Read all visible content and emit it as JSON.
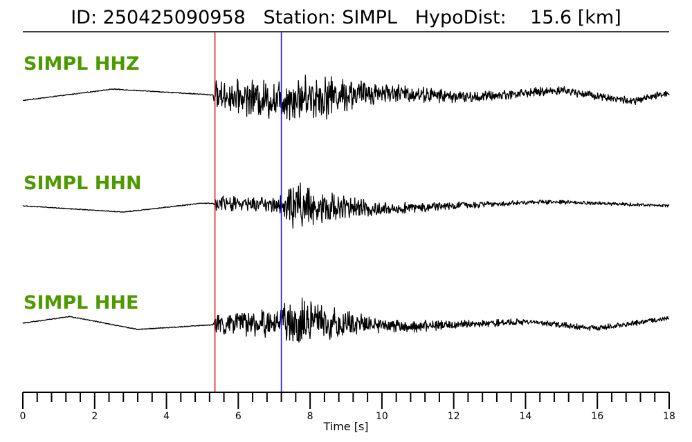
{
  "title": {
    "id_label": "ID:",
    "id_value": "250425090958",
    "station_label": "Station:",
    "station_value": "SIMPL",
    "hypodist_label": "HypoDist:",
    "hypodist_value": "15.6",
    "hypodist_unit": "[km]"
  },
  "colors": {
    "label": "#4c9a00",
    "trace": "#000000",
    "p_pick": "#e02020",
    "s_pick": "#1a1aff"
  },
  "chart_data": {
    "type": "line",
    "xlabel": "Time [s]",
    "xlim": [
      0,
      18
    ],
    "x_major_ticks": [
      0,
      2,
      4,
      6,
      8,
      10,
      12,
      14,
      16,
      18
    ],
    "x_minor_step": 0.4,
    "picks": [
      {
        "phase": "P",
        "time": 5.35,
        "color": "#e02020"
      },
      {
        "phase": "S",
        "time": 7.2,
        "color": "#1a1aff"
      }
    ],
    "series": [
      {
        "name": "SIMPL HHZ",
        "envelope": [
          [
            0,
            0.01
          ],
          [
            5.3,
            0.01
          ],
          [
            5.35,
            0.3
          ],
          [
            6.5,
            0.4
          ],
          [
            7.2,
            0.45
          ],
          [
            8.2,
            0.5
          ],
          [
            10,
            0.22
          ],
          [
            12,
            0.13
          ],
          [
            14,
            0.1
          ],
          [
            16,
            0.09
          ],
          [
            18,
            0.08
          ]
        ],
        "long_period": [
          [
            0,
            -0.1
          ],
          [
            2.5,
            0.12
          ],
          [
            5,
            0.02
          ],
          [
            7,
            -0.08
          ],
          [
            10,
            0.06
          ],
          [
            12.5,
            -0.04
          ],
          [
            15,
            0.1
          ],
          [
            17,
            -0.12
          ],
          [
            18,
            0.05
          ]
        ]
      },
      {
        "name": "SIMPL HHN",
        "envelope": [
          [
            0,
            0.01
          ],
          [
            5.3,
            0.01
          ],
          [
            5.35,
            0.15
          ],
          [
            7.1,
            0.2
          ],
          [
            7.5,
            0.6
          ],
          [
            8.2,
            0.35
          ],
          [
            10,
            0.14
          ],
          [
            12,
            0.08
          ],
          [
            14,
            0.05
          ],
          [
            18,
            0.03
          ]
        ],
        "long_period": [
          [
            0,
            0
          ],
          [
            2.8,
            -0.12
          ],
          [
            5,
            0.05
          ],
          [
            7,
            0.02
          ],
          [
            10,
            -0.06
          ],
          [
            14.5,
            0.08
          ],
          [
            18,
            0
          ]
        ]
      },
      {
        "name": "SIMPL HHE",
        "envelope": [
          [
            0,
            0.01
          ],
          [
            5.3,
            0.01
          ],
          [
            5.35,
            0.22
          ],
          [
            7.1,
            0.3
          ],
          [
            7.6,
            0.55
          ],
          [
            8.5,
            0.35
          ],
          [
            10,
            0.16
          ],
          [
            12,
            0.1
          ],
          [
            14,
            0.07
          ],
          [
            18,
            0.05
          ]
        ],
        "long_period": [
          [
            0,
            0
          ],
          [
            1.3,
            0.13
          ],
          [
            3.2,
            -0.12
          ],
          [
            5.3,
            -0.03
          ],
          [
            8,
            0.02
          ],
          [
            11,
            -0.06
          ],
          [
            14,
            0.03
          ],
          [
            16,
            -0.1
          ],
          [
            18,
            0.1
          ]
        ]
      }
    ]
  }
}
